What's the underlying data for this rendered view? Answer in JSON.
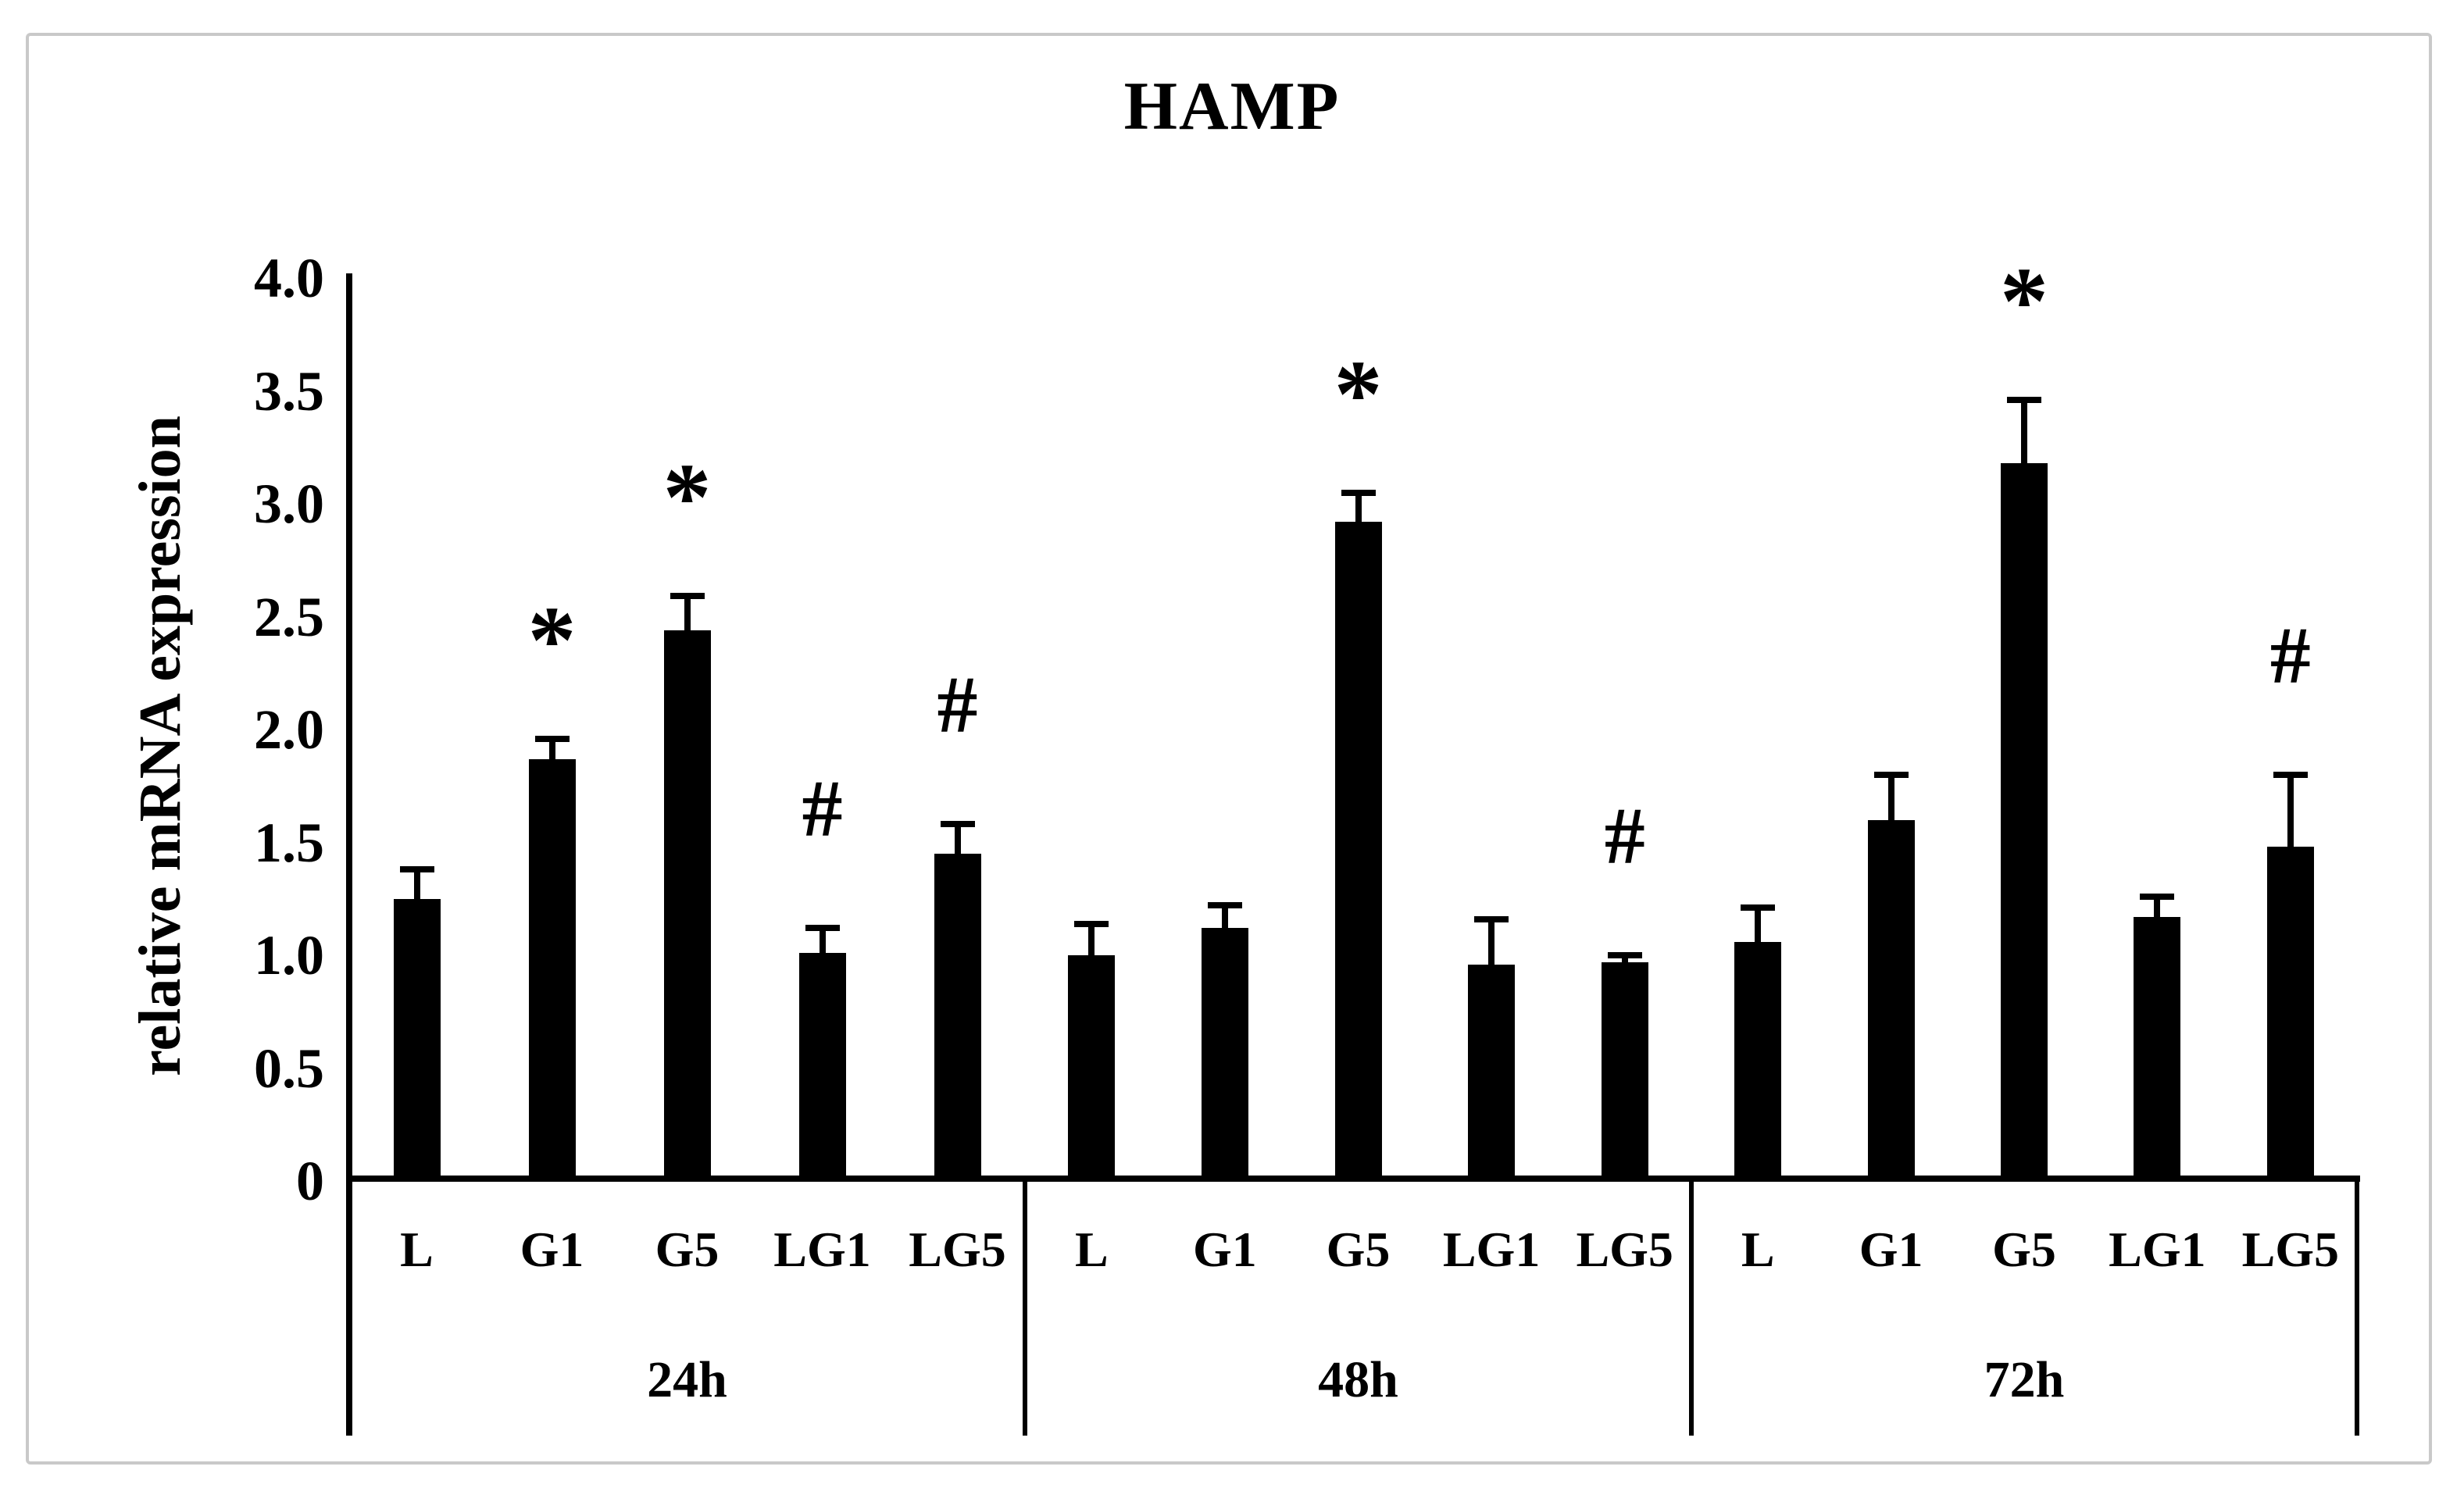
{
  "chart_data": {
    "type": "bar",
    "title": "HAMP",
    "ylabel": "relative mRNA expression",
    "xlabel": "",
    "ylim": [
      0,
      4.0
    ],
    "ytick_labels": [
      "0",
      "0.5",
      "1.0",
      "1.5",
      "2.0",
      "2.5",
      "3.0",
      "3.5",
      "4.0"
    ],
    "ytick_values": [
      0,
      0.5,
      1.0,
      1.5,
      2.0,
      2.5,
      3.0,
      3.5,
      4.0
    ],
    "grid": false,
    "legend": "none",
    "bar_color": "#000000",
    "annotation_color": "#000000",
    "categories": [
      "L",
      "G1",
      "G5",
      "LG1",
      "LG5"
    ],
    "group_labels": [
      "24h",
      "48h",
      "72h"
    ],
    "error_bars": "upper whisker with cap, SD",
    "series": [
      {
        "group": "24h",
        "values": [
          1.25,
          1.87,
          2.44,
          1.01,
          1.45
        ],
        "errors": [
          0.13,
          0.09,
          0.15,
          0.11,
          0.13
        ],
        "annotations": [
          "",
          "*",
          "*",
          "#",
          "#"
        ]
      },
      {
        "group": "48h",
        "values": [
          1.0,
          1.12,
          2.92,
          0.96,
          0.97
        ],
        "errors": [
          0.14,
          0.1,
          0.13,
          0.2,
          0.03
        ],
        "annotations": [
          "",
          "",
          "*",
          "",
          "#"
        ]
      },
      {
        "group": "72h",
        "values": [
          1.06,
          1.6,
          3.18,
          1.17,
          1.48
        ],
        "errors": [
          0.15,
          0.2,
          0.28,
          0.09,
          0.32
        ],
        "annotations": [
          "",
          "",
          "*",
          "",
          "#"
        ]
      }
    ]
  }
}
